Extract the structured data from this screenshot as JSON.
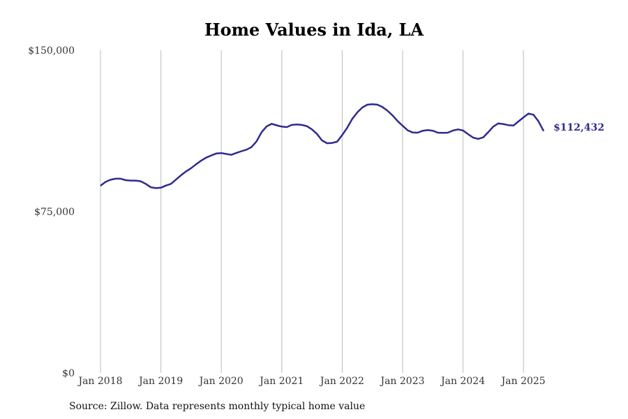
{
  "colors": {
    "line": "#2e2a8f",
    "grid": "#bbbbbb"
  },
  "source": "Source: Zillow. Data represents monthly typical home value",
  "chart_data": {
    "type": "line",
    "title": "Home Values in Ida, LA",
    "xlabel": "",
    "ylabel": "",
    "ylim": [
      0,
      150000
    ],
    "y_ticks": [
      {
        "value": 0,
        "label": "$0"
      },
      {
        "value": 75000,
        "label": "$75,000"
      },
      {
        "value": 150000,
        "label": "$150,000"
      }
    ],
    "x_ticks": [
      {
        "value": "2018-01",
        "label": "Jan 2018"
      },
      {
        "value": "2019-01",
        "label": "Jan 2019"
      },
      {
        "value": "2020-01",
        "label": "Jan 2020"
      },
      {
        "value": "2021-01",
        "label": "Jan 2021"
      },
      {
        "value": "2022-01",
        "label": "Jan 2022"
      },
      {
        "value": "2023-01",
        "label": "Jan 2023"
      },
      {
        "value": "2024-01",
        "label": "Jan 2024"
      },
      {
        "value": "2025-01",
        "label": "Jan 2025"
      }
    ],
    "grid": "vertical at x ticks",
    "end_label": "$112,432",
    "series": [
      {
        "x": [
          "2018-01",
          "2018-02",
          "2018-03",
          "2018-04",
          "2018-05",
          "2018-06",
          "2018-07",
          "2018-08",
          "2018-09",
          "2018-10",
          "2018-11",
          "2018-12",
          "2019-01",
          "2019-02",
          "2019-03",
          "2019-04",
          "2019-05",
          "2019-06",
          "2019-07",
          "2019-08",
          "2019-09",
          "2019-10",
          "2019-11",
          "2019-12",
          "2020-01",
          "2020-02",
          "2020-03",
          "2020-04",
          "2020-05",
          "2020-06",
          "2020-07",
          "2020-08",
          "2020-09",
          "2020-10",
          "2020-11",
          "2020-12",
          "2021-01",
          "2021-02",
          "2021-03",
          "2021-04",
          "2021-05",
          "2021-06",
          "2021-07",
          "2021-08",
          "2021-09",
          "2021-10",
          "2021-11",
          "2021-12",
          "2022-01",
          "2022-02",
          "2022-03",
          "2022-04",
          "2022-05",
          "2022-06",
          "2022-07",
          "2022-08",
          "2022-09",
          "2022-10",
          "2022-11",
          "2022-12",
          "2023-01",
          "2023-02",
          "2023-03",
          "2023-04",
          "2023-05",
          "2023-06",
          "2023-07",
          "2023-08",
          "2023-09",
          "2023-10",
          "2023-11",
          "2023-12",
          "2024-01",
          "2024-02",
          "2024-03",
          "2024-04",
          "2024-05",
          "2024-06",
          "2024-07",
          "2024-08",
          "2024-09",
          "2024-10",
          "2024-11",
          "2024-12",
          "2025-01",
          "2025-02",
          "2025-03",
          "2025-04",
          "2025-05"
        ],
        "values": [
          87000,
          88800,
          89800,
          90300,
          90300,
          89600,
          89400,
          89400,
          89100,
          87900,
          86300,
          85900,
          86100,
          87100,
          87900,
          89900,
          91900,
          93700,
          95200,
          97000,
          98700,
          100100,
          101100,
          102000,
          102200,
          101800,
          101400,
          102300,
          103100,
          103800,
          105000,
          107700,
          111900,
          114600,
          115800,
          115100,
          114500,
          114300,
          115300,
          115500,
          115300,
          114700,
          113200,
          111100,
          108100,
          106800,
          106900,
          107500,
          110600,
          114000,
          118100,
          121100,
          123400,
          124700,
          124900,
          124700,
          123600,
          121900,
          119700,
          117100,
          114900,
          112800,
          111800,
          111700,
          112600,
          112900,
          112600,
          111700,
          111600,
          111700,
          112700,
          113200,
          112700,
          111000,
          109400,
          108800,
          109500,
          111900,
          114500,
          116000,
          115700,
          115200,
          115000,
          116900,
          118800,
          120600,
          120000,
          116900,
          112432
        ]
      }
    ]
  }
}
